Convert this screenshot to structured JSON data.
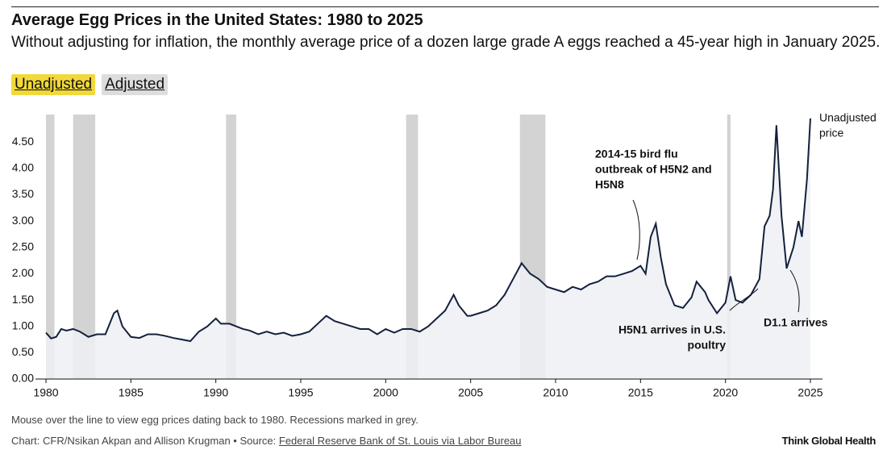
{
  "chart_data": {
    "type": "line",
    "title": "Average Egg Prices in the United States: 1980 to 2025",
    "subtitle": "Without adjusting for inflation, the monthly average price of a dozen large grade A eggs reached a 45-year high in January 2025.",
    "toggles": [
      "Unadjusted",
      "Adjusted"
    ],
    "note": "Mouse over the line to view egg prices dating back to 1980. Recessions marked in grey.",
    "source_prefix": "Chart: CFR/Nsikan Akpan and Allison Krugman • Source:",
    "source_link": "Federal Reserve Bank of St. Louis via Labor Bureau",
    "brand": "Think Global Health",
    "xlim": [
      1980,
      2025
    ],
    "ylim": [
      0,
      5
    ],
    "xticks": [
      1980,
      1985,
      1990,
      1995,
      2000,
      2005,
      2010,
      2015,
      2020,
      2025
    ],
    "yticks": [
      {
        "value": 0,
        "label": "0.00"
      },
      {
        "value": 0.5,
        "label": "0.50"
      },
      {
        "value": 1,
        "label": "1.00"
      },
      {
        "value": 1.5,
        "label": "1.50"
      },
      {
        "value": 2,
        "label": "2.00"
      },
      {
        "value": 2.5,
        "label": "2.50"
      },
      {
        "value": 3,
        "label": "3.00"
      },
      {
        "value": 3.5,
        "label": "3.50"
      },
      {
        "value": 4,
        "label": "4.00"
      },
      {
        "value": 4.5,
        "label": "4.50"
      }
    ],
    "recessions": [
      [
        1980.0,
        1980.5
      ],
      [
        1981.6,
        1982.9
      ],
      [
        1990.6,
        1991.2
      ],
      [
        2001.2,
        2001.9
      ],
      [
        2007.9,
        2009.4
      ],
      [
        2020.1,
        2020.3
      ]
    ],
    "recession_color": "#d3d3d3",
    "series": [
      {
        "name": "Unadjusted price",
        "name_lines": [
          "Unadjusted",
          "price"
        ],
        "color": "#13213c",
        "area_color": "#eef0f4",
        "x": [
          1980,
          1980.3,
          1980.6,
          1980.9,
          1981.2,
          1981.6,
          1982,
          1982.5,
          1983,
          1983.5,
          1984,
          1984.2,
          1984.5,
          1985,
          1985.5,
          1986,
          1986.5,
          1987,
          1987.5,
          1988,
          1988.5,
          1989,
          1989.5,
          1990,
          1990.3,
          1990.8,
          1991.2,
          1991.6,
          1992,
          1992.5,
          1993,
          1993.5,
          1994,
          1994.5,
          1995,
          1995.5,
          1996,
          1996.5,
          1997,
          1997.5,
          1998,
          1998.5,
          1999,
          1999.5,
          2000,
          2000.5,
          2001,
          2001.5,
          2002,
          2002.5,
          2003,
          2003.5,
          2004,
          2004.3,
          2004.8,
          2005,
          2005.5,
          2006,
          2006.5,
          2007,
          2007.5,
          2008,
          2008.5,
          2009,
          2009.5,
          2010,
          2010.5,
          2011,
          2011.5,
          2012,
          2012.5,
          2013,
          2013.5,
          2014,
          2014.5,
          2015,
          2015.3,
          2015.6,
          2015.9,
          2016.2,
          2016.5,
          2017,
          2017.5,
          2018,
          2018.3,
          2018.8,
          2019,
          2019.5,
          2020,
          2020.3,
          2020.6,
          2021,
          2021.5,
          2022,
          2022.3,
          2022.6,
          2022.8,
          2023,
          2023.3,
          2023.6,
          2024,
          2024.3,
          2024.5,
          2024.8,
          2025
        ],
        "values": [
          0.88,
          0.77,
          0.8,
          0.95,
          0.92,
          0.95,
          0.9,
          0.8,
          0.85,
          0.85,
          1.25,
          1.3,
          1.0,
          0.8,
          0.78,
          0.85,
          0.85,
          0.82,
          0.78,
          0.75,
          0.72,
          0.9,
          1.0,
          1.15,
          1.05,
          1.05,
          1.0,
          0.95,
          0.92,
          0.85,
          0.9,
          0.85,
          0.88,
          0.82,
          0.85,
          0.9,
          1.05,
          1.2,
          1.1,
          1.05,
          1.0,
          0.95,
          0.95,
          0.85,
          0.95,
          0.88,
          0.95,
          0.95,
          0.9,
          1.0,
          1.15,
          1.3,
          1.6,
          1.4,
          1.2,
          1.2,
          1.25,
          1.3,
          1.4,
          1.6,
          1.9,
          2.2,
          2.0,
          1.9,
          1.75,
          1.7,
          1.65,
          1.75,
          1.7,
          1.8,
          1.85,
          1.95,
          1.95,
          2.0,
          2.05,
          2.15,
          2.0,
          2.7,
          2.95,
          2.3,
          1.8,
          1.4,
          1.35,
          1.55,
          1.85,
          1.65,
          1.5,
          1.25,
          1.45,
          1.95,
          1.5,
          1.45,
          1.6,
          1.9,
          2.9,
          3.1,
          3.6,
          4.82,
          3.1,
          2.1,
          2.5,
          3.0,
          2.7,
          3.8,
          4.95
        ]
      }
    ],
    "annotations": [
      {
        "lines": [
          "2014-15 bird flu",
          "outbreak of H5N2 and",
          "H5N8"
        ],
        "color": "#e8553a"
      },
      {
        "lines": [
          "H5N1 arrives in U.S.",
          "poultry"
        ],
        "color": "#e8553a"
      },
      {
        "lines": [
          "D1.1 arrives"
        ],
        "color": "#e8553a"
      }
    ]
  }
}
